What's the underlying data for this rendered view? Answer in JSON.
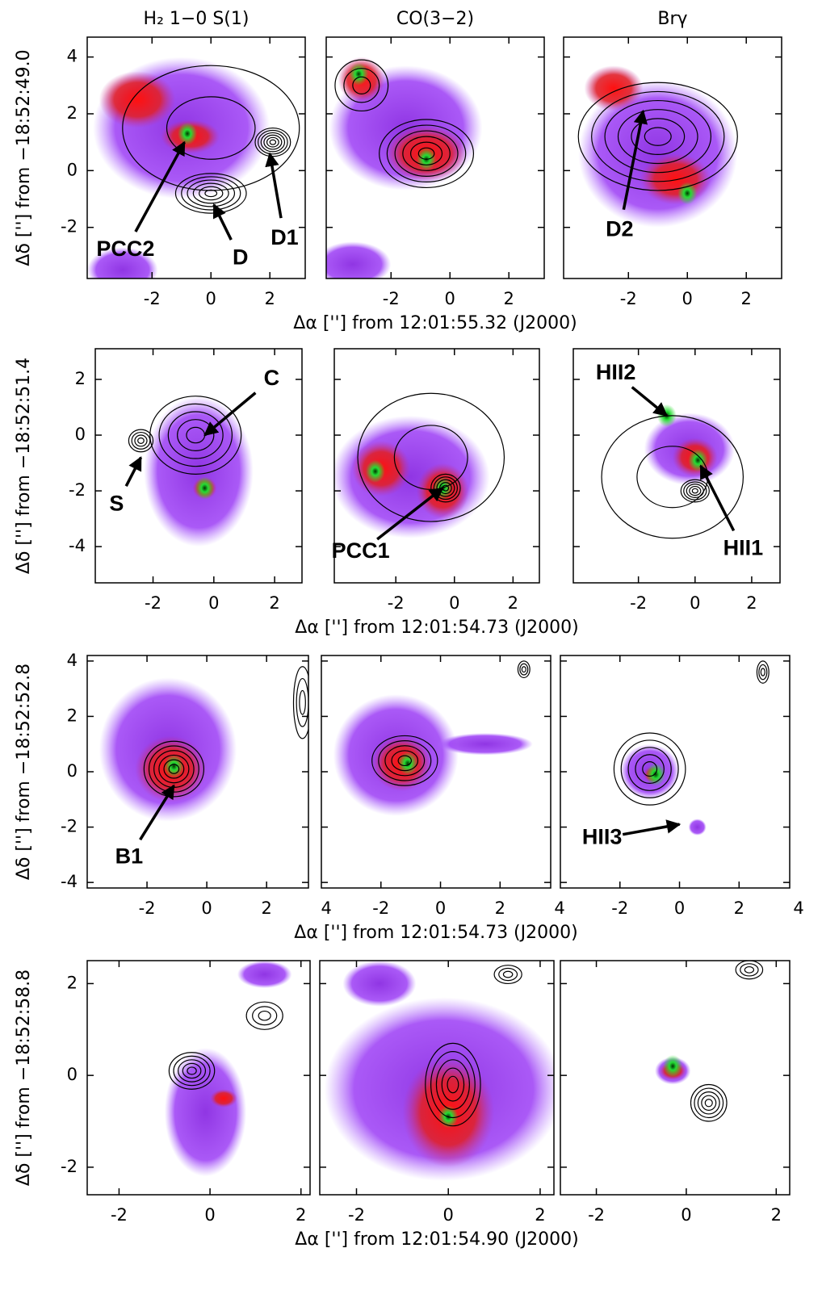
{
  "chart_data": [
    {
      "type": "image",
      "title": "H₂ 1−0 S(1)",
      "ylabel": "Δδ [''] from −18:52:49.0",
      "ytick_labels": true,
      "xlim": [
        -4.2,
        3.2
      ],
      "ylim": [
        -3.8,
        4.7
      ],
      "xticks": [
        -2,
        0,
        2
      ],
      "yticks": [
        -2,
        0,
        2,
        4
      ],
      "annotations": [
        {
          "text": "PCC2",
          "xy": [
            -0.9,
            1.0
          ],
          "xytext": [
            -2.9,
            -2.8
          ]
        },
        {
          "text": "D",
          "xy": [
            0.1,
            -1.2
          ],
          "xytext": [
            1.0,
            -3.1
          ]
        },
        {
          "text": "D1",
          "xy": [
            2.0,
            0.6
          ],
          "xytext": [
            2.5,
            -2.4
          ]
        }
      ]
    },
    {
      "type": "image",
      "title": "CO(3−2)",
      "xlabel": "Δα [''] from 12:01:55.32 (J2000)",
      "ytick_labels": false,
      "xlim": [
        -4.2,
        3.2
      ],
      "ylim": [
        -3.8,
        4.7
      ],
      "xticks": [
        -2,
        0,
        2
      ],
      "yticks": [
        -2,
        0,
        2,
        4
      ],
      "annotations": []
    },
    {
      "type": "image",
      "title": "Brγ",
      "ytick_labels": false,
      "xlim": [
        -4.2,
        3.2
      ],
      "ylim": [
        -3.8,
        4.7
      ],
      "xticks": [
        -2,
        0,
        2
      ],
      "yticks": [
        -2,
        0,
        2,
        4
      ],
      "annotations": [
        {
          "text": "D2",
          "xy": [
            -1.5,
            2.1
          ],
          "xytext": [
            -2.3,
            -2.1
          ]
        }
      ]
    },
    {
      "type": "image",
      "ylabel": "Δδ [''] from −18:52:51.4",
      "ytick_labels": true,
      "xlim": [
        -3.9,
        2.9
      ],
      "ylim": [
        -5.3,
        3.1
      ],
      "xticks": [
        -2,
        0,
        2
      ],
      "yticks": [
        -4,
        -2,
        0,
        2
      ],
      "annotations": [
        {
          "text": "C",
          "xy": [
            -0.3,
            0.0
          ],
          "xytext": [
            1.9,
            2.0
          ]
        },
        {
          "text": "S",
          "xy": [
            -2.4,
            -0.8
          ],
          "xytext": [
            -3.2,
            -2.5
          ]
        }
      ]
    },
    {
      "type": "image",
      "xlabel": "Δα [''] from 12:01:54.73 (J2000)",
      "ytick_labels": false,
      "xlim": [
        -4.1,
        2.9
      ],
      "ylim": [
        -5.3,
        3.1
      ],
      "xticks": [
        -2,
        0,
        2
      ],
      "yticks": [
        -4,
        -2,
        0,
        2
      ],
      "annotations": [
        {
          "text": "PCC1",
          "xy": [
            -0.4,
            -1.9
          ],
          "xytext": [
            -3.2,
            -4.2
          ]
        }
      ]
    },
    {
      "type": "image",
      "ytick_labels": false,
      "xlim": [
        -4.3,
        3.0
      ],
      "ylim": [
        -5.3,
        3.1
      ],
      "xticks": [
        -2,
        0,
        2
      ],
      "yticks": [
        -4,
        -2,
        0,
        2
      ],
      "annotations": [
        {
          "text": "HII2",
          "xy": [
            -1.0,
            0.7
          ],
          "xytext": [
            -2.8,
            2.2
          ]
        },
        {
          "text": "HII1",
          "xy": [
            0.2,
            -1.1
          ],
          "xytext": [
            1.7,
            -4.1
          ]
        }
      ]
    },
    {
      "type": "image",
      "ylabel": "Δδ [''] from −18:52:52.8",
      "ytick_labels": true,
      "xlim": [
        -4.0,
        3.4
      ],
      "ylim": [
        -4.2,
        4.2
      ],
      "xticks": [
        -2,
        0,
        2,
        4
      ],
      "yticks": [
        -4,
        -2,
        0,
        2,
        4
      ],
      "annotations": [
        {
          "text": "B1",
          "xy": [
            -1.1,
            -0.5
          ],
          "xytext": [
            -2.6,
            -3.1
          ]
        }
      ]
    },
    {
      "type": "image",
      "xlabel": "Δα [''] from 12:01:54.73 (J2000)",
      "ytick_labels": false,
      "xlim": [
        -4.0,
        3.7
      ],
      "ylim": [
        -4.2,
        4.2
      ],
      "xticks": [
        -2,
        0,
        2,
        4
      ],
      "yticks": [
        -4,
        -2,
        0,
        2,
        4
      ],
      "annotations": []
    },
    {
      "type": "image",
      "ytick_labels": false,
      "xlim": [
        -4.0,
        3.7
      ],
      "ylim": [
        -4.2,
        4.2
      ],
      "xticks": [
        -2,
        0,
        2,
        4
      ],
      "yticks": [
        -4,
        -2,
        0,
        2,
        4
      ],
      "annotations": [
        {
          "text": "HII3",
          "xy": [
            0.0,
            -1.9
          ],
          "xytext": [
            -2.6,
            -2.4
          ]
        }
      ]
    },
    {
      "type": "image",
      "ylabel": "Δδ [''] from −18:52:58.8",
      "ytick_labels": true,
      "xlim": [
        -2.7,
        2.2
      ],
      "ylim": [
        -2.6,
        2.5
      ],
      "xticks": [
        -2,
        0,
        2
      ],
      "yticks": [
        -2,
        0,
        2
      ],
      "annotations": []
    },
    {
      "type": "image",
      "xlabel": "Δα [''] from 12:01:54.90 (J2000)",
      "ytick_labels": false,
      "xlim": [
        -2.8,
        2.3
      ],
      "ylim": [
        -2.6,
        2.5
      ],
      "xticks": [
        -2,
        0,
        2
      ],
      "yticks": [
        -2,
        0,
        2
      ],
      "annotations": []
    },
    {
      "type": "image",
      "ytick_labels": false,
      "xlim": [
        -2.8,
        2.3
      ],
      "ylim": [
        -2.6,
        2.5
      ],
      "xticks": [
        -2,
        0,
        2
      ],
      "yticks": [
        -2,
        0,
        2
      ],
      "annotations": []
    }
  ]
}
